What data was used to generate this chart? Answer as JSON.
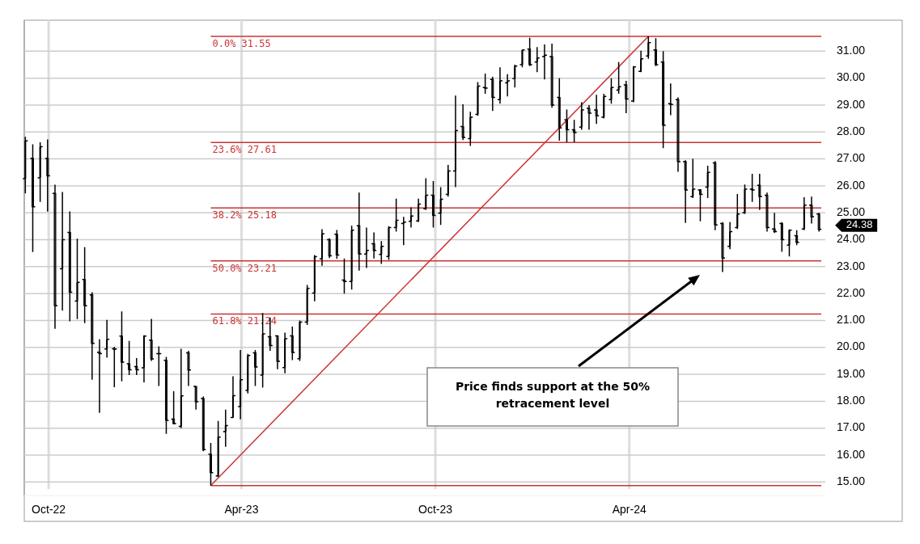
{
  "chart_data": {
    "type": "candlestick",
    "x": [
      "2022-09-09",
      "2022-09-16",
      "2022-09-23",
      "2022-09-30",
      "2022-10-07",
      "2022-10-14",
      "2022-10-21",
      "2022-10-28",
      "2022-11-04",
      "2022-11-11",
      "2022-11-18",
      "2022-11-25",
      "2022-12-02",
      "2022-12-09",
      "2022-12-16",
      "2022-12-23",
      "2022-12-30",
      "2023-01-06",
      "2023-01-13",
      "2023-01-20",
      "2023-01-27",
      "2023-02-03",
      "2023-02-10",
      "2023-02-17",
      "2023-02-24",
      "2023-03-03",
      "2023-03-10",
      "2023-03-17",
      "2023-03-24",
      "2023-03-31",
      "2023-04-07",
      "2023-04-14",
      "2023-04-21",
      "2023-04-28",
      "2023-05-05",
      "2023-05-12",
      "2023-05-19",
      "2023-05-26",
      "2023-06-02",
      "2023-06-09",
      "2023-06-16",
      "2023-06-23",
      "2023-06-30",
      "2023-07-07",
      "2023-07-14",
      "2023-07-21",
      "2023-07-28",
      "2023-08-04",
      "2023-08-11",
      "2023-08-18",
      "2023-08-25",
      "2023-09-01",
      "2023-09-08",
      "2023-09-15",
      "2023-09-22",
      "2023-09-29",
      "2023-10-06",
      "2023-10-13",
      "2023-10-20",
      "2023-10-27",
      "2023-11-03",
      "2023-11-10",
      "2023-11-17",
      "2023-11-24",
      "2023-12-01",
      "2023-12-08",
      "2023-12-15",
      "2023-12-22",
      "2023-12-29",
      "2024-01-05",
      "2024-01-12",
      "2024-01-19",
      "2024-01-26",
      "2024-02-02",
      "2024-02-09",
      "2024-02-16",
      "2024-02-23",
      "2024-03-01",
      "2024-03-08",
      "2024-03-15",
      "2024-03-22",
      "2024-03-29",
      "2024-04-05",
      "2024-04-12",
      "2024-04-19",
      "2024-04-26",
      "2024-05-03",
      "2024-05-10",
      "2024-05-17",
      "2024-05-24",
      "2024-05-31",
      "2024-06-07",
      "2024-06-14",
      "2024-06-21",
      "2024-06-28",
      "2024-07-05",
      "2024-07-12",
      "2024-07-19",
      "2024-07-26",
      "2024-08-02",
      "2024-08-09",
      "2024-08-16",
      "2024-08-23",
      "2024-08-30",
      "2024-09-06",
      "2024-09-13",
      "2024-09-20",
      "2024-09-27"
    ],
    "ohlc": [
      [
        26.27,
        27.82,
        25.72,
        27.67
      ],
      [
        27.02,
        27.54,
        23.54,
        25.22
      ],
      [
        26.3,
        27.62,
        25.4,
        27.45
      ],
      [
        27.02,
        27.72,
        25.04,
        26.37
      ],
      [
        25.72,
        26.04,
        20.69,
        21.55
      ],
      [
        22.92,
        25.77,
        21.37,
        24.0
      ],
      [
        24.27,
        25.05,
        20.97,
        22.05
      ],
      [
        21.72,
        24.04,
        21.05,
        22.42
      ],
      [
        22.52,
        23.72,
        20.9,
        21.55
      ],
      [
        21.95,
        22.05,
        18.8,
        20.15
      ],
      [
        19.82,
        20.3,
        17.57,
        19.77
      ],
      [
        19.94,
        21.02,
        19.62,
        20.3
      ],
      [
        19.95,
        20.02,
        18.52,
        19.94
      ],
      [
        20.42,
        21.34,
        18.74,
        19.45
      ],
      [
        19.39,
        20.24,
        18.97,
        19.17
      ],
      [
        19.29,
        19.6,
        18.97,
        19.17
      ],
      [
        19.24,
        20.45,
        18.7,
        20.42
      ],
      [
        20.27,
        21.06,
        19.5,
        19.57
      ],
      [
        19.77,
        20.04,
        18.57,
        19.77
      ],
      [
        19.52,
        19.65,
        16.79,
        17.29
      ],
      [
        17.34,
        18.37,
        17.14,
        17.17
      ],
      [
        17.07,
        19.95,
        17.0,
        18.2
      ],
      [
        19.8,
        19.87,
        18.57,
        19.16
      ],
      [
        18.55,
        18.55,
        17.69,
        17.98
      ],
      [
        18.1,
        18.18,
        16.14,
        16.2
      ],
      [
        16.03,
        16.45,
        14.87,
        15.35
      ],
      [
        15.23,
        17.27,
        15.18,
        16.67
      ],
      [
        16.87,
        17.69,
        16.31,
        17.1
      ],
      [
        17.4,
        18.93,
        17.38,
        18.21
      ],
      [
        17.8,
        19.9,
        17.33,
        18.8
      ],
      [
        18.4,
        19.76,
        18.29,
        19.7
      ],
      [
        19.8,
        19.9,
        18.57,
        19.27
      ],
      [
        18.97,
        21.28,
        18.51,
        20.5
      ],
      [
        20.4,
        21.11,
        19.87,
        20.07
      ],
      [
        20.43,
        20.43,
        19.19,
        19.48
      ],
      [
        19.25,
        20.55,
        19.04,
        20.32
      ],
      [
        20.43,
        20.77,
        19.53,
        19.81
      ],
      [
        19.58,
        21.0,
        19.5,
        20.94
      ],
      [
        20.94,
        22.32,
        20.83,
        22.19
      ],
      [
        22.02,
        23.43,
        21.71,
        23.37
      ],
      [
        23.29,
        24.39,
        23.03,
        24.22
      ],
      [
        24.0,
        24.05,
        23.32,
        23.4
      ],
      [
        24.2,
        24.36,
        23.29,
        23.43
      ],
      [
        22.5,
        23.3,
        22.0,
        22.45
      ],
      [
        22.45,
        24.52,
        22.15,
        24.35
      ],
      [
        24.52,
        25.75,
        22.85,
        23.47
      ],
      [
        23.47,
        24.45,
        22.95,
        23.6
      ],
      [
        23.85,
        24.27,
        23.3,
        23.6
      ],
      [
        23.45,
        23.95,
        23.1,
        23.75
      ],
      [
        23.38,
        24.5,
        23.25,
        24.45
      ],
      [
        24.45,
        25.52,
        24.3,
        24.72
      ],
      [
        24.6,
        24.85,
        23.8,
        24.65
      ],
      [
        24.68,
        25.2,
        24.45,
        24.88
      ],
      [
        24.7,
        25.52,
        24.65,
        25.32
      ],
      [
        25.15,
        26.28,
        25.1,
        25.65
      ],
      [
        25.65,
        26.18,
        24.45,
        24.9
      ],
      [
        24.98,
        25.95,
        24.55,
        25.5
      ],
      [
        25.68,
        26.78,
        25.6,
        26.55
      ],
      [
        26.55,
        29.35,
        25.95,
        28.05
      ],
      [
        28.2,
        29.03,
        27.7,
        27.8
      ],
      [
        27.75,
        28.75,
        27.48,
        28.55
      ],
      [
        28.65,
        29.85,
        28.6,
        29.7
      ],
      [
        29.65,
        30.17,
        29.42,
        29.63
      ],
      [
        29.95,
        30.05,
        28.78,
        29.28
      ],
      [
        29.2,
        30.4,
        29.05,
        29.9
      ],
      [
        29.82,
        30.15,
        29.32,
        29.9
      ],
      [
        29.98,
        30.5,
        29.65,
        30.45
      ],
      [
        30.5,
        31.05,
        30.4,
        31.05
      ],
      [
        31.08,
        31.5,
        30.45,
        30.5
      ],
      [
        30.6,
        31.15,
        30.22,
        30.75
      ],
      [
        30.8,
        31.25,
        29.95,
        30.85
      ],
      [
        30.8,
        31.28,
        28.9,
        29.0
      ],
      [
        29.28,
        30.0,
        27.68,
        28.15
      ],
      [
        28.45,
        28.83,
        27.62,
        28.08
      ],
      [
        28.08,
        28.45,
        27.62,
        27.98
      ],
      [
        28.18,
        29.1,
        28.08,
        28.82
      ],
      [
        28.88,
        29.0,
        28.08,
        28.7
      ],
      [
        28.82,
        29.38,
        28.3,
        28.6
      ],
      [
        28.55,
        29.42,
        28.5,
        29.32
      ],
      [
        29.2,
        30.0,
        29.05,
        29.65
      ],
      [
        29.55,
        30.6,
        29.42,
        29.68
      ],
      [
        29.75,
        29.9,
        28.7,
        29.22
      ],
      [
        29.15,
        30.45,
        29.1,
        30.42
      ],
      [
        30.25,
        31.02,
        30.22,
        30.72
      ],
      [
        30.82,
        31.55,
        30.72,
        31.32
      ],
      [
        31.05,
        31.48,
        30.45,
        30.5
      ],
      [
        30.6,
        31.0,
        27.4,
        28.25
      ],
      [
        29.05,
        29.8,
        28.62,
        29.02
      ],
      [
        29.2,
        29.28,
        26.52,
        26.9
      ],
      [
        26.9,
        26.95,
        24.62,
        25.85
      ],
      [
        25.6,
        27.0,
        25.55,
        25.88
      ],
      [
        25.85,
        25.88,
        24.68,
        25.68
      ],
      [
        25.95,
        26.75,
        25.55,
        26.5
      ],
      [
        26.85,
        26.92,
        24.35,
        24.55
      ],
      [
        24.6,
        24.65,
        22.8,
        23.32
      ],
      [
        23.75,
        24.65,
        23.65,
        24.3
      ],
      [
        24.45,
        25.7,
        24.4,
        24.95
      ],
      [
        25.0,
        26.05,
        24.95,
        25.88
      ],
      [
        25.88,
        26.45,
        25.4,
        25.85
      ],
      [
        26.02,
        26.45,
        25.1,
        25.6
      ],
      [
        25.65,
        25.75,
        24.3,
        24.45
      ],
      [
        24.4,
        25.0,
        24.25,
        24.3
      ],
      [
        24.6,
        24.65,
        23.55,
        24.0
      ],
      [
        23.8,
        24.38,
        23.38,
        24.35
      ],
      [
        24.15,
        24.35,
        23.8,
        23.9
      ],
      [
        24.4,
        25.58,
        24.35,
        25.28
      ],
      [
        25.28,
        25.6,
        24.6,
        24.85
      ],
      [
        24.95,
        25.0,
        24.3,
        24.38
      ]
    ],
    "color": "#000000",
    "series": [
      {
        "type": "line",
        "x": [
          "2023-03-03",
          "2024-04-19"
        ],
        "values": [
          14.87,
          31.55
        ],
        "color": "#cc3333"
      }
    ],
    "ref_lines": [
      {
        "axis": "y",
        "value": 31.55,
        "label": "0.0% 31.55",
        "color": "#cc3333"
      },
      {
        "axis": "y",
        "value": 27.61,
        "label": "23.6% 27.61",
        "color": "#cc3333"
      },
      {
        "axis": "y",
        "value": 25.18,
        "label": "38.2% 25.18",
        "color": "#cc3333"
      },
      {
        "axis": "y",
        "value": 23.21,
        "label": "50.0% 23.21",
        "color": "#cc3333"
      },
      {
        "axis": "y",
        "value": 21.24,
        "label": "61.8% 21.24",
        "color": "#cc3333"
      },
      {
        "axis": "y",
        "value": 14.87,
        "label": null,
        "color": "#cc3333"
      }
    ],
    "annotations": [
      "Price finds support at the 50% retracement level",
      {
        "text": "24.38",
        "x": "2024-09-27",
        "y": 24.38
      }
    ],
    "xlim": [
      "2022-09-08",
      "2024-10-03"
    ],
    "xticks": [
      {
        "value": "2022-10-01",
        "label": "Oct-22"
      },
      {
        "value": "2023-04-01",
        "label": "Apr-23"
      },
      {
        "value": "2023-10-01",
        "label": "Oct-23"
      },
      {
        "value": "2024-04-01",
        "label": "Apr-24"
      }
    ],
    "ylim": [
      14.5,
      32.15
    ],
    "yticks": [
      {
        "value": 15,
        "label": "15.00"
      },
      {
        "value": 16,
        "label": "16.00"
      },
      {
        "value": 17,
        "label": "17.00"
      },
      {
        "value": 18,
        "label": "18.00"
      },
      {
        "value": 19,
        "label": "19.00"
      },
      {
        "value": 20,
        "label": "20.00"
      },
      {
        "value": 21,
        "label": "21.00"
      },
      {
        "value": 22,
        "label": "22.00"
      },
      {
        "value": 23,
        "label": "23.00"
      },
      {
        "value": 24,
        "label": "24.00"
      },
      {
        "value": 25,
        "label": "25.00"
      },
      {
        "value": 26,
        "label": "26.00"
      },
      {
        "value": 27,
        "label": "27.00"
      },
      {
        "value": 28,
        "label": "28.00"
      },
      {
        "value": 29,
        "label": "29.00"
      },
      {
        "value": 30,
        "label": "30.00"
      },
      {
        "value": 31,
        "label": "31.00"
      }
    ],
    "grid": true
  }
}
